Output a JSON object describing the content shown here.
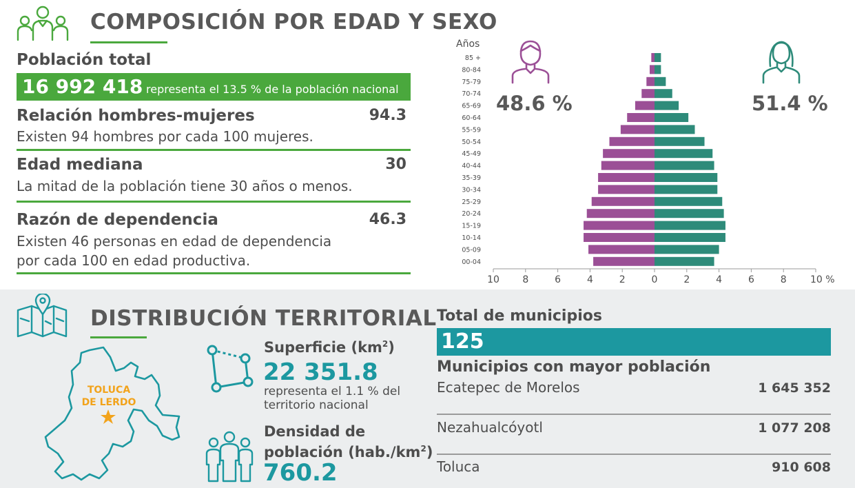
{
  "composicion": {
    "title": "COMPOSICIÓN POR EDAD Y SEXO",
    "poblacion_label": "Población total",
    "poblacion_value": "16 992 418",
    "poblacion_note": "representa el 13.5 % de la población nacional",
    "stats": [
      {
        "label": "Relación hombres-mujeres",
        "value": "94.3",
        "desc": "Existen 94 hombres por cada 100 mujeres."
      },
      {
        "label": "Edad mediana",
        "value": "30",
        "desc": "La mitad de la población tiene 30 años o menos."
      },
      {
        "label": "Razón de dependencia",
        "value": "46.3",
        "desc": "Existen 46 personas en edad de dependencia",
        "desc2": "por cada 100 en edad productiva."
      }
    ],
    "male_pct": "48.6 %",
    "female_pct": "51.4 %"
  },
  "chart_data": {
    "type": "bar",
    "orientation": "horizontal-pyramid",
    "ylabel": "Años",
    "categories": [
      "85 +",
      "80-84",
      "75-79",
      "70-74",
      "65-69",
      "60-64",
      "55-59",
      "50-54",
      "45-49",
      "40-44",
      "35-39",
      "30-34",
      "25-29",
      "20-24",
      "15-19",
      "10-14",
      "05-09",
      "00-04"
    ],
    "series": [
      {
        "name": "Hombres",
        "color": "#9b4f96",
        "values": [
          0.2,
          0.3,
          0.5,
          0.8,
          1.2,
          1.7,
          2.1,
          2.8,
          3.2,
          3.3,
          3.5,
          3.5,
          3.9,
          4.2,
          4.4,
          4.4,
          4.1,
          3.8
        ]
      },
      {
        "name": "Mujeres",
        "color": "#2e8b7a",
        "values": [
          0.4,
          0.4,
          0.7,
          1.1,
          1.5,
          2.1,
          2.5,
          3.1,
          3.6,
          3.7,
          3.9,
          3.9,
          4.2,
          4.3,
          4.4,
          4.4,
          4.0,
          3.7
        ]
      }
    ],
    "xlim": [
      -10,
      10
    ],
    "xticks": [
      "10",
      "8",
      "6",
      "4",
      "2",
      "0",
      "2",
      "4",
      "6",
      "8",
      "10 %"
    ]
  },
  "territorial": {
    "title": "DISTRIBUCIÓN TERRITORIAL",
    "capital": [
      "TOLUCA",
      "DE LERDO"
    ],
    "superficie_label": "Superficie (km",
    "superficie_sup": "2",
    "superficie_label_end": ")",
    "superficie_value": "22 351.8",
    "superficie_note1": "representa el 1.1 % del",
    "superficie_note2": "territorio nacional",
    "densidad_label1": "Densidad de",
    "densidad_label2": "población (hab./km",
    "densidad_sup": "2",
    "densidad_label2_end": ")",
    "densidad_value": "760.2"
  },
  "municipios": {
    "total_label": "Total de municipios",
    "total_value": "125",
    "mayor_label": "Municipios con mayor población",
    "items": [
      {
        "name": "Ecatepec de Morelos",
        "value": "1 645 352"
      },
      {
        "name": "Nezahualcóyotl",
        "value": "1 077 208"
      },
      {
        "name": "Toluca",
        "value": "910 608"
      }
    ]
  },
  "colors": {
    "green": "#4aa83d",
    "teal": "#1c98a0",
    "purple": "#9b4f96",
    "dark_teal": "#2e8b7a"
  }
}
